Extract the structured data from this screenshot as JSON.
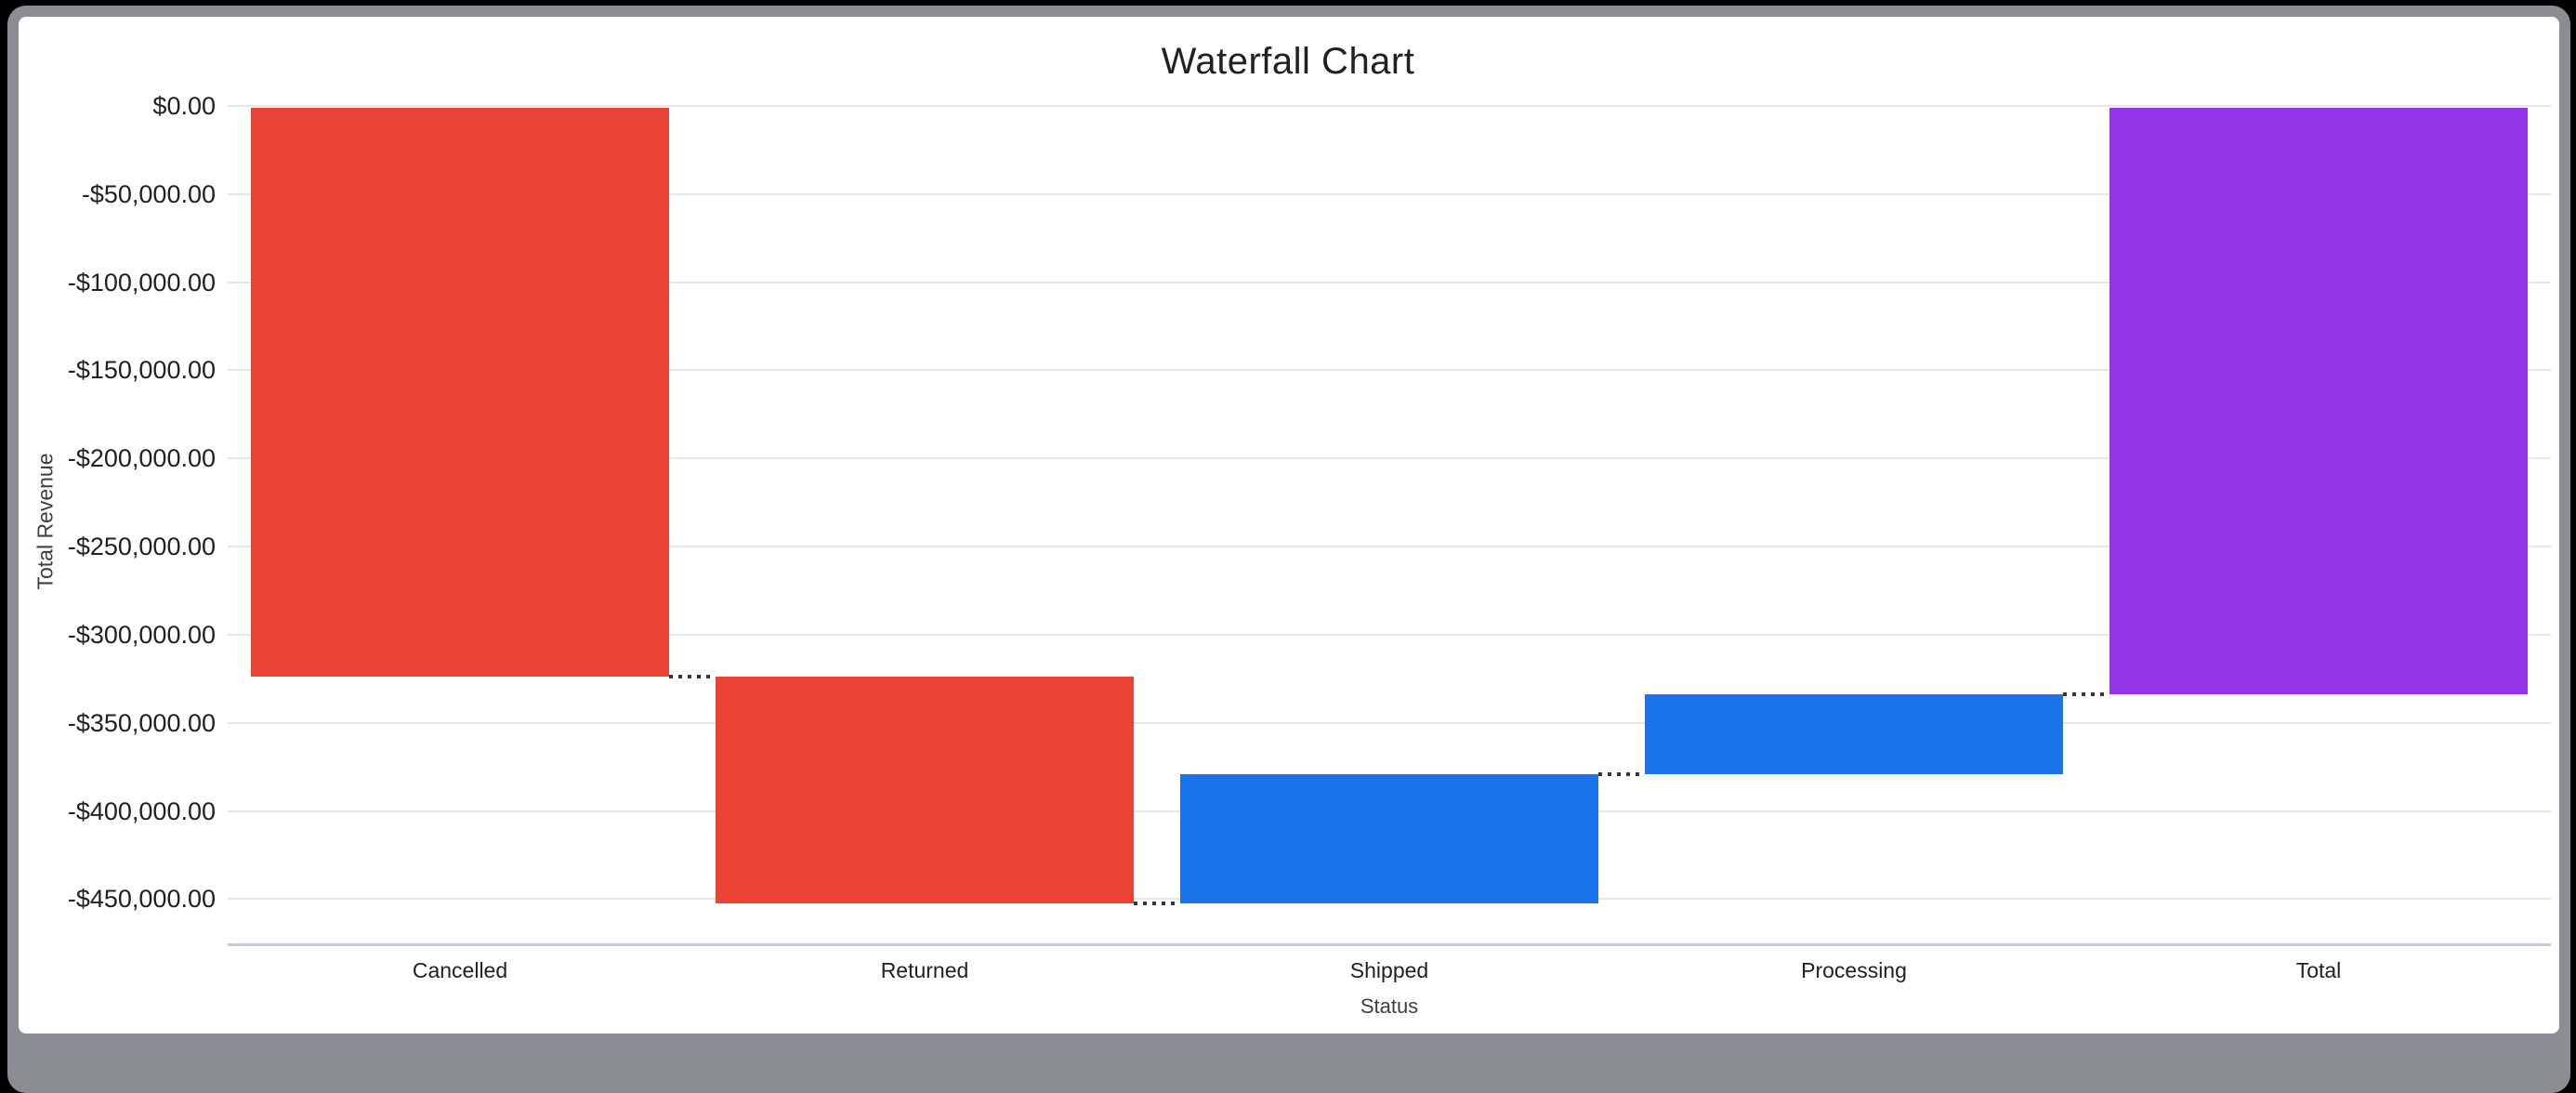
{
  "window": {
    "frame_color": "#8A8E92",
    "page_background": "#000000"
  },
  "chart_data": {
    "type": "bar",
    "subtype": "waterfall",
    "title": "Waterfall Chart",
    "xlabel": "Status",
    "ylabel": "Total Revenue",
    "categories": [
      "Cancelled",
      "Returned",
      "Shipped",
      "Processing",
      "Total"
    ],
    "steps": [
      {
        "label": "Cancelled",
        "start": 0,
        "end": -323500,
        "change": -323500,
        "kind": "decrease"
      },
      {
        "label": "Returned",
        "start": -323500,
        "end": -452600,
        "change": -129100,
        "kind": "decrease"
      },
      {
        "label": "Shipped",
        "start": -452600,
        "end": -379100,
        "change": 73500,
        "kind": "increase"
      },
      {
        "label": "Processing",
        "start": -379100,
        "end": -334000,
        "change": 45100,
        "kind": "increase"
      },
      {
        "label": "Total",
        "start": 0,
        "end": -334000,
        "change": -334000,
        "kind": "total"
      }
    ],
    "y_ticks": [
      {
        "label": "$0.00",
        "value": 0
      },
      {
        "label": "-$50,000.00",
        "value": -50000
      },
      {
        "label": "-$100,000.00",
        "value": -100000
      },
      {
        "label": "-$150,000.00",
        "value": -150000
      },
      {
        "label": "-$200,000.00",
        "value": -200000
      },
      {
        "label": "-$250,000.00",
        "value": -250000
      },
      {
        "label": "-$300,000.00",
        "value": -300000
      },
      {
        "label": "-$350,000.00",
        "value": -350000
      },
      {
        "label": "-$400,000.00",
        "value": -400000
      },
      {
        "label": "-$450,000.00",
        "value": -450000
      }
    ],
    "ylim": [
      0,
      -475000
    ],
    "grid": true,
    "legend": "none",
    "connector_style": "dotted",
    "colors": {
      "decrease": "#EA4335",
      "increase": "#1A73E8",
      "total": "#9334E6",
      "gridline": "#E6E6E6",
      "baseline": "#C2CBDC",
      "connector": "#31373D",
      "text": "#202124"
    }
  }
}
